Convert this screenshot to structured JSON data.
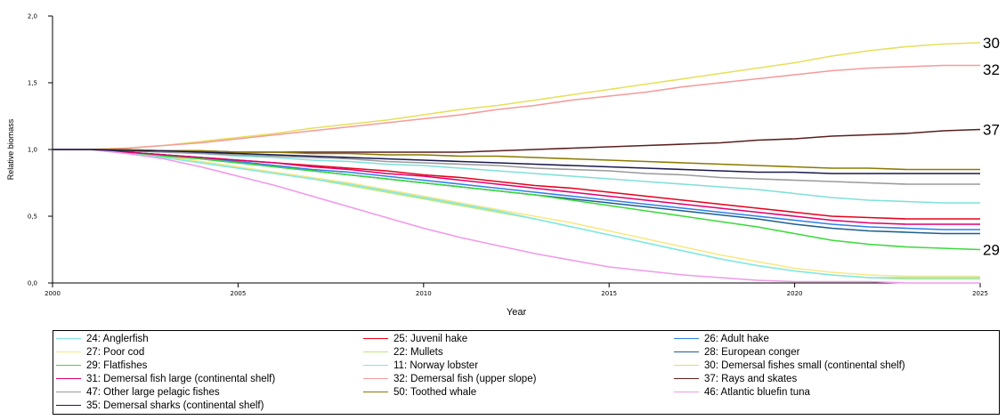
{
  "chart_data": {
    "type": "line",
    "xlabel": "Year",
    "ylabel": "Relative biomass",
    "xlim": [
      2000,
      2025
    ],
    "ylim": [
      0,
      2
    ],
    "x_ticks": [
      "2000",
      "2005",
      "2010",
      "2015",
      "2020",
      "2025"
    ],
    "y_ticks": [
      "0,0",
      "0,5",
      "1,0",
      "1,5",
      "2,0"
    ],
    "x": [
      2000,
      2001,
      2002,
      2003,
      2004,
      2005,
      2006,
      2007,
      2008,
      2009,
      2010,
      2011,
      2012,
      2013,
      2014,
      2015,
      2016,
      2017,
      2018,
      2019,
      2020,
      2021,
      2022,
      2023,
      2024,
      2025
    ],
    "series": [
      {
        "name": "24: Anglerfish",
        "color": "#7fe0d9",
        "values": [
          1.0,
          1.0,
          0.99,
          0.98,
          0.97,
          0.95,
          0.94,
          0.92,
          0.91,
          0.89,
          0.88,
          0.86,
          0.84,
          0.82,
          0.8,
          0.78,
          0.76,
          0.74,
          0.72,
          0.7,
          0.67,
          0.64,
          0.62,
          0.61,
          0.6,
          0.6
        ]
      },
      {
        "name": "25: Juvenil hake",
        "color": "#e8001a",
        "values": [
          1.0,
          1.0,
          0.98,
          0.96,
          0.94,
          0.92,
          0.9,
          0.88,
          0.86,
          0.84,
          0.81,
          0.79,
          0.76,
          0.73,
          0.71,
          0.68,
          0.65,
          0.62,
          0.59,
          0.56,
          0.53,
          0.5,
          0.49,
          0.48,
          0.48,
          0.48
        ]
      },
      {
        "name": "26: Adult hake",
        "color": "#2f7fe8",
        "values": [
          1.0,
          1.0,
          0.98,
          0.96,
          0.94,
          0.91,
          0.88,
          0.85,
          0.83,
          0.8,
          0.77,
          0.74,
          0.71,
          0.68,
          0.65,
          0.62,
          0.59,
          0.56,
          0.53,
          0.5,
          0.47,
          0.44,
          0.42,
          0.41,
          0.4,
          0.4
        ]
      },
      {
        "name": "27: Poor cod",
        "color": "#f7e884",
        "values": [
          1.0,
          1.0,
          0.98,
          0.95,
          0.91,
          0.87,
          0.83,
          0.79,
          0.75,
          0.7,
          0.65,
          0.6,
          0.55,
          0.5,
          0.45,
          0.39,
          0.33,
          0.27,
          0.21,
          0.16,
          0.11,
          0.08,
          0.06,
          0.05,
          0.05,
          0.05
        ]
      },
      {
        "name": "22: Mullets",
        "color": "#bde87a",
        "values": [
          1.0,
          1.0,
          0.97,
          0.94,
          0.9,
          0.86,
          0.82,
          0.78,
          0.73,
          0.68,
          0.63,
          0.58,
          0.53,
          0.48,
          0.42,
          0.36,
          0.3,
          0.24,
          0.18,
          0.13,
          0.09,
          0.06,
          0.04,
          0.03,
          0.03,
          0.03
        ]
      },
      {
        "name": "28: European conger",
        "color": "#1f5f8b",
        "values": [
          1.0,
          1.0,
          0.98,
          0.96,
          0.93,
          0.9,
          0.87,
          0.84,
          0.81,
          0.78,
          0.75,
          0.72,
          0.69,
          0.66,
          0.63,
          0.6,
          0.57,
          0.54,
          0.51,
          0.48,
          0.44,
          0.41,
          0.39,
          0.38,
          0.37,
          0.37
        ]
      },
      {
        "name": "29: Flatfishes",
        "color": "#3cd93c",
        "values": [
          1.0,
          1.0,
          0.98,
          0.95,
          0.93,
          0.9,
          0.87,
          0.84,
          0.81,
          0.78,
          0.75,
          0.72,
          0.69,
          0.66,
          0.62,
          0.58,
          0.54,
          0.5,
          0.46,
          0.42,
          0.37,
          0.32,
          0.29,
          0.27,
          0.26,
          0.25
        ]
      },
      {
        "name": "11: Norway lobster",
        "color": "#7fe8ea",
        "values": [
          1.0,
          1.0,
          0.97,
          0.94,
          0.9,
          0.86,
          0.82,
          0.78,
          0.74,
          0.69,
          0.64,
          0.59,
          0.54,
          0.48,
          0.42,
          0.36,
          0.3,
          0.24,
          0.18,
          0.13,
          0.09,
          0.06,
          0.04,
          0.04,
          0.04,
          0.04
        ]
      },
      {
        "name": "30: Demersal fishes small (continental shelf)",
        "color": "#e5e05a",
        "values": [
          1.0,
          1.0,
          1.01,
          1.03,
          1.06,
          1.09,
          1.12,
          1.16,
          1.19,
          1.22,
          1.26,
          1.3,
          1.33,
          1.37,
          1.41,
          1.45,
          1.49,
          1.53,
          1.57,
          1.61,
          1.65,
          1.7,
          1.74,
          1.77,
          1.79,
          1.8
        ]
      },
      {
        "name": "31: Demersal fish large (continental shelf)",
        "color": "#e0006e",
        "values": [
          1.0,
          1.0,
          0.98,
          0.96,
          0.94,
          0.92,
          0.9,
          0.87,
          0.85,
          0.82,
          0.8,
          0.77,
          0.74,
          0.71,
          0.68,
          0.65,
          0.62,
          0.59,
          0.56,
          0.53,
          0.5,
          0.47,
          0.45,
          0.44,
          0.44,
          0.44
        ]
      },
      {
        "name": "32: Demersal fish (upper slope)",
        "color": "#f59b9b",
        "values": [
          1.0,
          1.0,
          1.01,
          1.03,
          1.05,
          1.08,
          1.11,
          1.14,
          1.17,
          1.2,
          1.23,
          1.26,
          1.3,
          1.33,
          1.37,
          1.4,
          1.43,
          1.47,
          1.5,
          1.53,
          1.56,
          1.59,
          1.61,
          1.62,
          1.63,
          1.63
        ]
      },
      {
        "name": "37: Rays and skates",
        "color": "#5a1f1f",
        "values": [
          1.0,
          1.0,
          1.0,
          0.99,
          0.99,
          0.98,
          0.98,
          0.98,
          0.98,
          0.98,
          0.98,
          0.98,
          0.99,
          1.0,
          1.01,
          1.02,
          1.03,
          1.04,
          1.05,
          1.07,
          1.08,
          1.1,
          1.11,
          1.12,
          1.14,
          1.15
        ]
      },
      {
        "name": "47: Other large pelagic fishes",
        "color": "#9a9a9a",
        "values": [
          1.0,
          1.0,
          0.99,
          0.98,
          0.97,
          0.96,
          0.95,
          0.94,
          0.93,
          0.91,
          0.9,
          0.89,
          0.88,
          0.86,
          0.85,
          0.84,
          0.82,
          0.81,
          0.79,
          0.78,
          0.77,
          0.76,
          0.75,
          0.74,
          0.74,
          0.74
        ]
      },
      {
        "name": "50: Toothed whale",
        "color": "#8a7a00",
        "values": [
          1.0,
          1.0,
          1.0,
          0.99,
          0.99,
          0.98,
          0.98,
          0.97,
          0.97,
          0.96,
          0.96,
          0.95,
          0.95,
          0.94,
          0.93,
          0.92,
          0.91,
          0.9,
          0.89,
          0.88,
          0.87,
          0.86,
          0.86,
          0.85,
          0.85,
          0.85
        ]
      },
      {
        "name": "46: Atlantic bluefin tuna",
        "color": "#f09ae8",
        "values": [
          1.0,
          1.0,
          0.97,
          0.93,
          0.87,
          0.8,
          0.73,
          0.65,
          0.57,
          0.49,
          0.41,
          0.34,
          0.28,
          0.22,
          0.17,
          0.12,
          0.09,
          0.06,
          0.04,
          0.02,
          0.01,
          0.01,
          0.01,
          0.0,
          0.0,
          0.0
        ]
      },
      {
        "name": "35: Demersal sharks (continental shelf)",
        "color": "#1a1a4e",
        "values": [
          1.0,
          1.0,
          0.99,
          0.99,
          0.98,
          0.97,
          0.96,
          0.95,
          0.94,
          0.93,
          0.92,
          0.91,
          0.9,
          0.89,
          0.88,
          0.87,
          0.86,
          0.85,
          0.84,
          0.83,
          0.83,
          0.82,
          0.82,
          0.82,
          0.82,
          0.82
        ]
      }
    ],
    "annotations": [
      {
        "text": "30",
        "x": 2025,
        "y": 1.8
      },
      {
        "text": "32",
        "x": 2025,
        "y": 1.6
      },
      {
        "text": "37",
        "x": 2025,
        "y": 1.15
      },
      {
        "text": "29",
        "x": 2025,
        "y": 0.25
      }
    ],
    "legend_placement": "bottom",
    "grid": false
  }
}
